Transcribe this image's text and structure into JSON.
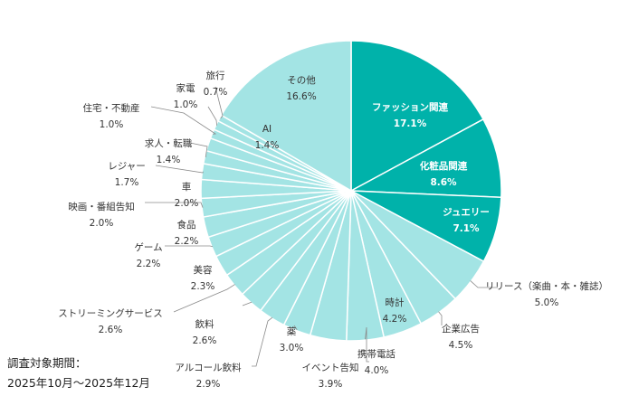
{
  "chart_data": {
    "type": "pie",
    "unit": "%",
    "slices": [
      {
        "label": "ファッション関連",
        "value": 17.1,
        "value_label": "17.1%",
        "color": "#00b2aa"
      },
      {
        "label": "化粧品関連",
        "value": 8.6,
        "value_label": "8.6%",
        "color": "#00b2aa"
      },
      {
        "label": "ジュエリー",
        "value": 7.1,
        "value_label": "7.1%",
        "color": "#00b2aa"
      },
      {
        "label": "リリース（楽曲・本・雑誌）",
        "value": 5.0,
        "value_label": "5.0%",
        "color": "#a3e4e4"
      },
      {
        "label": "企業広告",
        "value": 4.5,
        "value_label": "4.5%",
        "color": "#a3e4e4"
      },
      {
        "label": "時計",
        "value": 4.2,
        "value_label": "4.2%",
        "color": "#a3e4e4"
      },
      {
        "label": "携帯電話",
        "value": 4.0,
        "value_label": "4.0%",
        "color": "#a3e4e4"
      },
      {
        "label": "イベント告知",
        "value": 3.9,
        "value_label": "3.9%",
        "color": "#a3e4e4"
      },
      {
        "label": "薬",
        "value": 3.0,
        "value_label": "3.0%",
        "color": "#a3e4e4"
      },
      {
        "label": "アルコール飲料",
        "value": 2.9,
        "value_label": "2.9%",
        "color": "#a3e4e4"
      },
      {
        "label": "飲料",
        "value": 2.6,
        "value_label": "2.6%",
        "color": "#a3e4e4"
      },
      {
        "label": "ストリーミングサービス",
        "value": 2.6,
        "value_label": "2.6%",
        "color": "#a3e4e4"
      },
      {
        "label": "美容",
        "value": 2.3,
        "value_label": "2.3%",
        "color": "#a3e4e4"
      },
      {
        "label": "ゲーム",
        "value": 2.2,
        "value_label": "2.2%",
        "color": "#a3e4e4"
      },
      {
        "label": "食品",
        "value": 2.2,
        "value_label": "2.2%",
        "color": "#a3e4e4"
      },
      {
        "label": "映画・番組告知",
        "value": 2.0,
        "value_label": "2.0%",
        "color": "#a3e4e4"
      },
      {
        "label": "車",
        "value": 2.0,
        "value_label": "2.0%",
        "color": "#a3e4e4"
      },
      {
        "label": "レジャー",
        "value": 1.7,
        "value_label": "1.7%",
        "color": "#a3e4e4"
      },
      {
        "label": "求人・転職",
        "value": 1.4,
        "value_label": "1.4%",
        "color": "#a3e4e4"
      },
      {
        "label": "AI",
        "value": 1.4,
        "value_label": "1.4%",
        "color": "#a3e4e4"
      },
      {
        "label": "住宅・不動産",
        "value": 1.0,
        "value_label": "1.0%",
        "color": "#a3e4e4"
      },
      {
        "label": "家電",
        "value": 1.0,
        "value_label": "1.0%",
        "color": "#a3e4e4"
      },
      {
        "label": "旅行",
        "value": 0.7,
        "value_label": "0.7%",
        "color": "#a3e4e4"
      },
      {
        "label": "その他",
        "value": 16.6,
        "value_label": "16.6%",
        "color": "#a3e4e4"
      }
    ]
  },
  "period": {
    "title": "調査対象期間：",
    "range": "2025年10月～2025年12月"
  }
}
